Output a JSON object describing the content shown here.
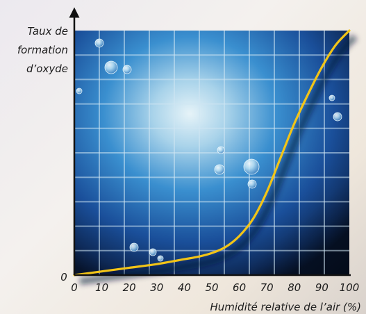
{
  "chart_data": {
    "type": "line",
    "ylabel_lines": [
      "Taux de",
      "formation",
      "d’oxyde"
    ],
    "xlabel": "Humidité relative de l’air (%)",
    "y_zero_label": "0",
    "x_ticks": [
      0,
      10,
      20,
      30,
      40,
      50,
      60,
      70,
      80,
      90,
      100
    ],
    "xlim": [
      0,
      100
    ],
    "ylim": [
      0,
      100
    ],
    "series": [
      {
        "color": "#f2c417",
        "x": [
          0,
          10,
          20,
          30,
          40,
          45,
          50,
          55,
          60,
          65,
          70,
          75,
          80,
          85,
          90,
          95,
          100
        ],
        "y": [
          0,
          1.5,
          3,
          4.5,
          6.5,
          7.5,
          9,
          11.5,
          16,
          23,
          34,
          48,
          62,
          74,
          85,
          94,
          100
        ]
      }
    ],
    "grid": true,
    "background": "blue water droplets texture"
  }
}
